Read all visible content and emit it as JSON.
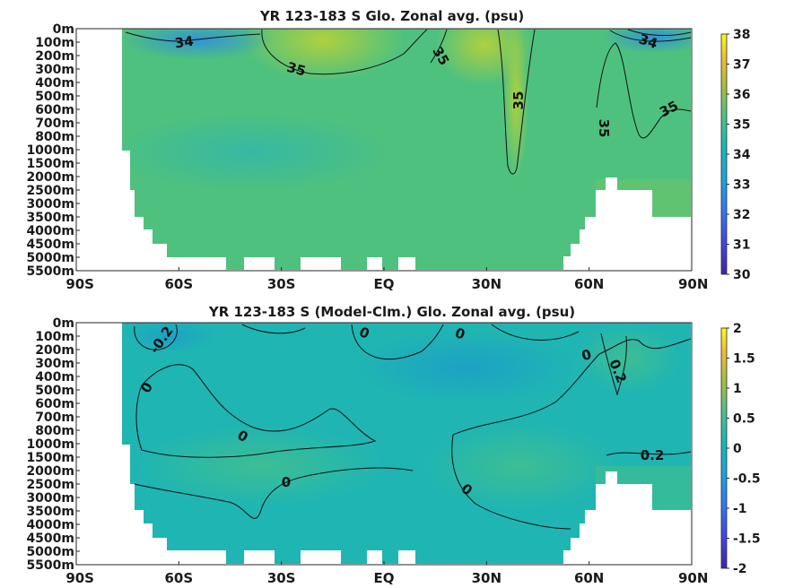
{
  "chart_data": [
    {
      "type": "heatmap",
      "title": "YR 123-183 S Glo. Zonal avg. (psu)",
      "x_ticks": [
        "90S",
        "60S",
        "30S",
        "EQ",
        "30N",
        "60N",
        "90N"
      ],
      "y_ticks": [
        "0m",
        "100m",
        "200m",
        "300m",
        "400m",
        "500m",
        "600m",
        "700m",
        "800m",
        "1000m",
        "1500m",
        "2000m",
        "2500m",
        "3000m",
        "3500m",
        "4000m",
        "4500m",
        "5000m",
        "5500m"
      ],
      "colorbar": {
        "min": 30,
        "max": 38,
        "ticks": [
          "30",
          "31",
          "32",
          "33",
          "34",
          "35",
          "36",
          "37",
          "38"
        ]
      },
      "contour_labels": [
        "34",
        "35",
        "35",
        "35",
        "35",
        "34",
        "35"
      ],
      "colors": {
        "background": "#4fc17e",
        "high": "#a6cf3e",
        "low": "#1ea3c9"
      }
    },
    {
      "type": "heatmap",
      "title": "YR 123-183 S (Model-Clm.) Glo. Zonal avg. (psu)",
      "x_ticks": [
        "90S",
        "60S",
        "30S",
        "EQ",
        "30N",
        "60N",
        "90N"
      ],
      "y_ticks": [
        "0m",
        "100m",
        "200m",
        "300m",
        "400m",
        "500m",
        "600m",
        "700m",
        "800m",
        "1000m",
        "1500m",
        "2000m",
        "2500m",
        "3000m",
        "3500m",
        "4000m",
        "4500m",
        "5000m",
        "5500m"
      ],
      "colorbar": {
        "min": -2,
        "max": 2,
        "ticks": [
          "-2",
          "-1.5",
          "-1",
          "-0.5",
          "0",
          "0.5",
          "1",
          "1.5",
          "2"
        ]
      },
      "contour_labels": [
        "-0.2",
        "0",
        "0",
        "0",
        "0",
        "0",
        "0",
        "0",
        "0.2",
        "0.2"
      ],
      "colors": {
        "background": "#1fb5b3",
        "high": "#3fbf8e",
        "low": "#1d9fc4"
      }
    }
  ]
}
